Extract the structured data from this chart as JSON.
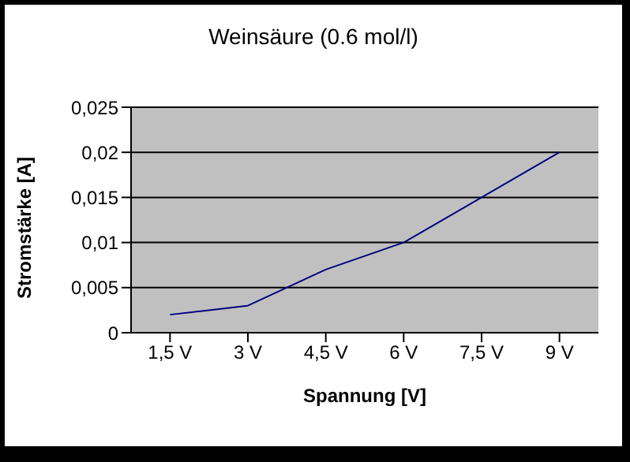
{
  "chart_data": {
    "type": "line",
    "title": "Weinsäure (0.6 mol/l)",
    "xlabel": "Spannung [V]",
    "ylabel": "Stromstärke [A]",
    "categories": [
      "1,5 V",
      "3 V",
      "4,5 V",
      "6 V",
      "7,5 V",
      "9 V"
    ],
    "series": [
      {
        "color": "#000080",
        "values": [
          0.002,
          0.003,
          0.007,
          0.01,
          0.015,
          0.02
        ]
      }
    ],
    "ylim": [
      0,
      0.025
    ],
    "yticks": [
      0,
      {
        "value": 0.005,
        "label": "0,005"
      },
      {
        "value": 0.01,
        "label": "0,01"
      },
      {
        "value": 0.015,
        "label": "0,015"
      },
      {
        "value": 0.02,
        "label": "0,02"
      },
      {
        "value": 0.025,
        "label": "0,025"
      }
    ],
    "grid": "y",
    "legend": false,
    "marker": "none",
    "line_style": "solid"
  }
}
